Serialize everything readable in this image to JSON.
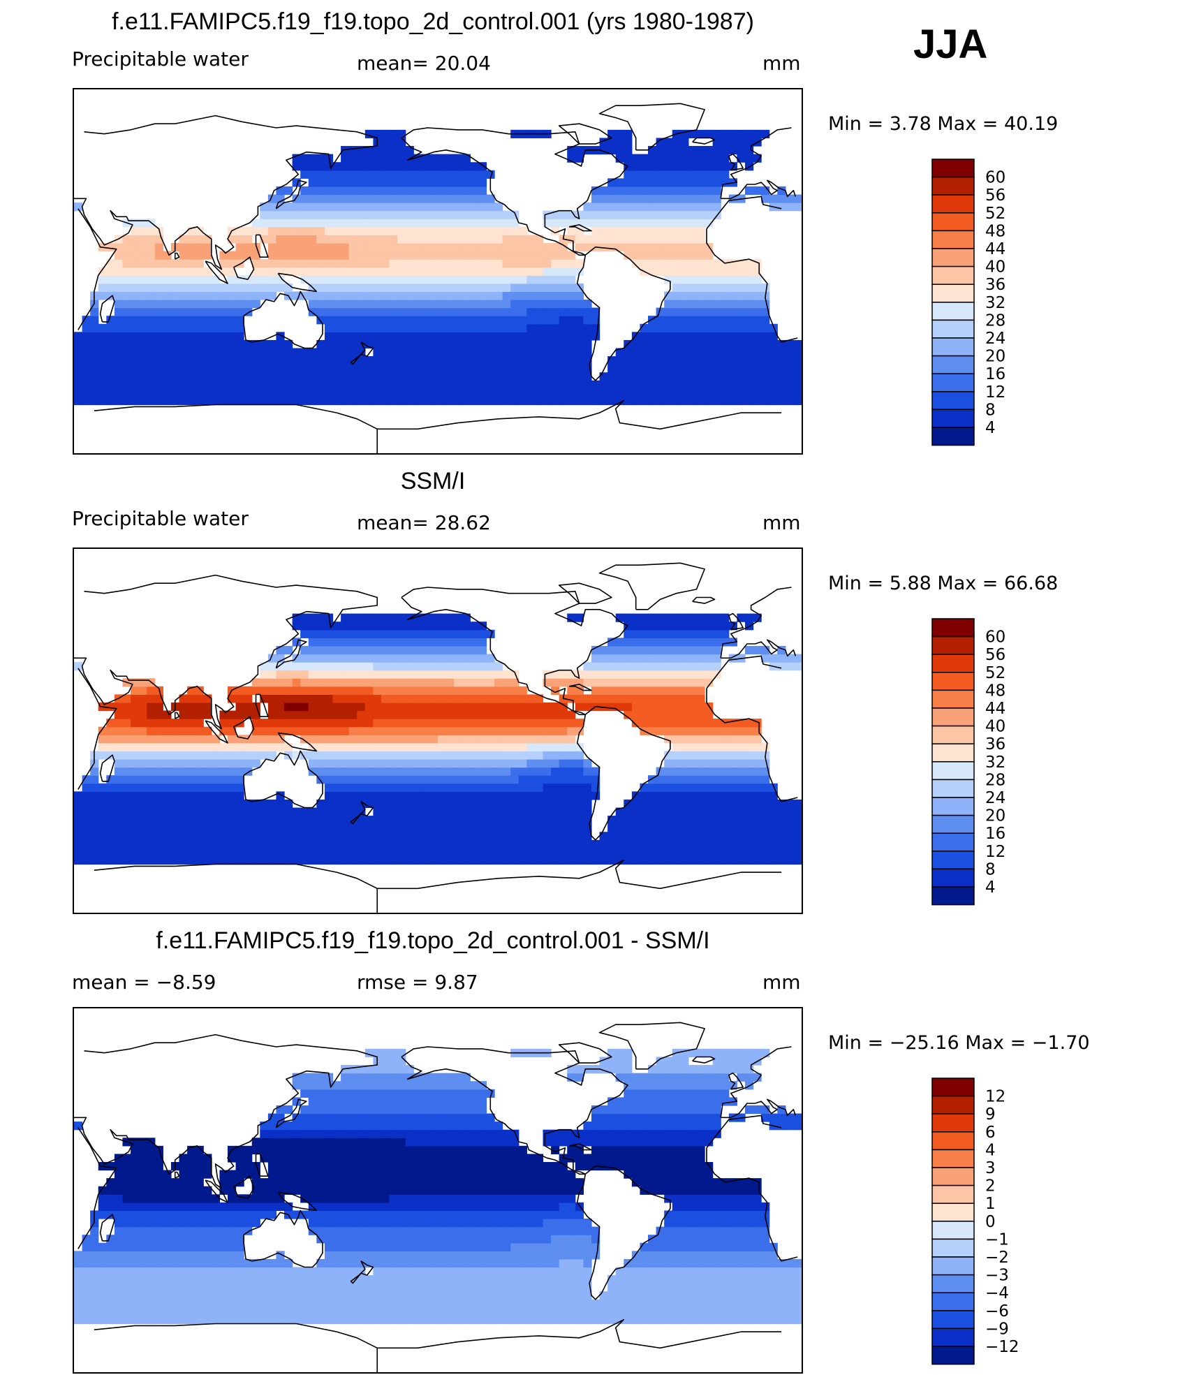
{
  "season": "JJA",
  "panels": [
    {
      "id": "model",
      "title": "f.e11.FAMIPC5.f19_f19.topo_2d_control.001 (yrs 1980-1987)",
      "left_label": "Precipitable water",
      "center_label": "mean=   20.04",
      "units": "mm",
      "min_max": "Min =     3.78  Max =    40.19",
      "colorbar_labels": [
        "60",
        "56",
        "52",
        "48",
        "44",
        "40",
        "36",
        "32",
        "28",
        "24",
        "20",
        "16",
        "12",
        "8",
        "4"
      ],
      "colorbar_colors": [
        "#800000",
        "#b22000",
        "#e03a0a",
        "#f25c22",
        "#f88048",
        "#faa277",
        "#fbc5a6",
        "#fde3d0",
        "#d7e8fb",
        "#b4d0fb",
        "#8fb3f8",
        "#5e8ef0",
        "#3a6eea",
        "#1b4fe0",
        "#0b30c8",
        "#001a8e"
      ],
      "field": "model"
    },
    {
      "id": "obs",
      "title": "SSM/I",
      "left_label": "Precipitable water",
      "center_label": "mean=   28.62",
      "units": "mm",
      "min_max": "Min =     5.88  Max =    66.68",
      "colorbar_labels": [
        "60",
        "56",
        "52",
        "48",
        "44",
        "40",
        "36",
        "32",
        "28",
        "24",
        "20",
        "16",
        "12",
        "8",
        "4"
      ],
      "colorbar_colors": [
        "#800000",
        "#b22000",
        "#e03a0a",
        "#f25c22",
        "#f88048",
        "#faa277",
        "#fbc5a6",
        "#fde3d0",
        "#d7e8fb",
        "#b4d0fb",
        "#8fb3f8",
        "#5e8ef0",
        "#3a6eea",
        "#1b4fe0",
        "#0b30c8",
        "#001a8e"
      ],
      "field": "obs"
    },
    {
      "id": "diff",
      "title": "f.e11.FAMIPC5.f19_f19.topo_2d_control.001 - SSM/I",
      "left_label": "mean =   −8.59",
      "center_label": "rmse =    9.87",
      "units": "mm",
      "min_max": "Min = −25.16  Max =   −1.70",
      "colorbar_labels": [
        "12",
        "9",
        "6",
        "4",
        "3",
        "2",
        "1",
        "0",
        "−1",
        "−2",
        "−3",
        "−4",
        "−6",
        "−9",
        "−12"
      ],
      "colorbar_colors": [
        "#800000",
        "#b22000",
        "#e03a0a",
        "#f25c22",
        "#f88048",
        "#faa277",
        "#fbc5a6",
        "#fde3d0",
        "#d7e8fb",
        "#b4d0fb",
        "#8fb3f8",
        "#5e8ef0",
        "#3a6eea",
        "#1b4fe0",
        "#0b30c8",
        "#001a8e"
      ],
      "field": "diff"
    }
  ]
}
